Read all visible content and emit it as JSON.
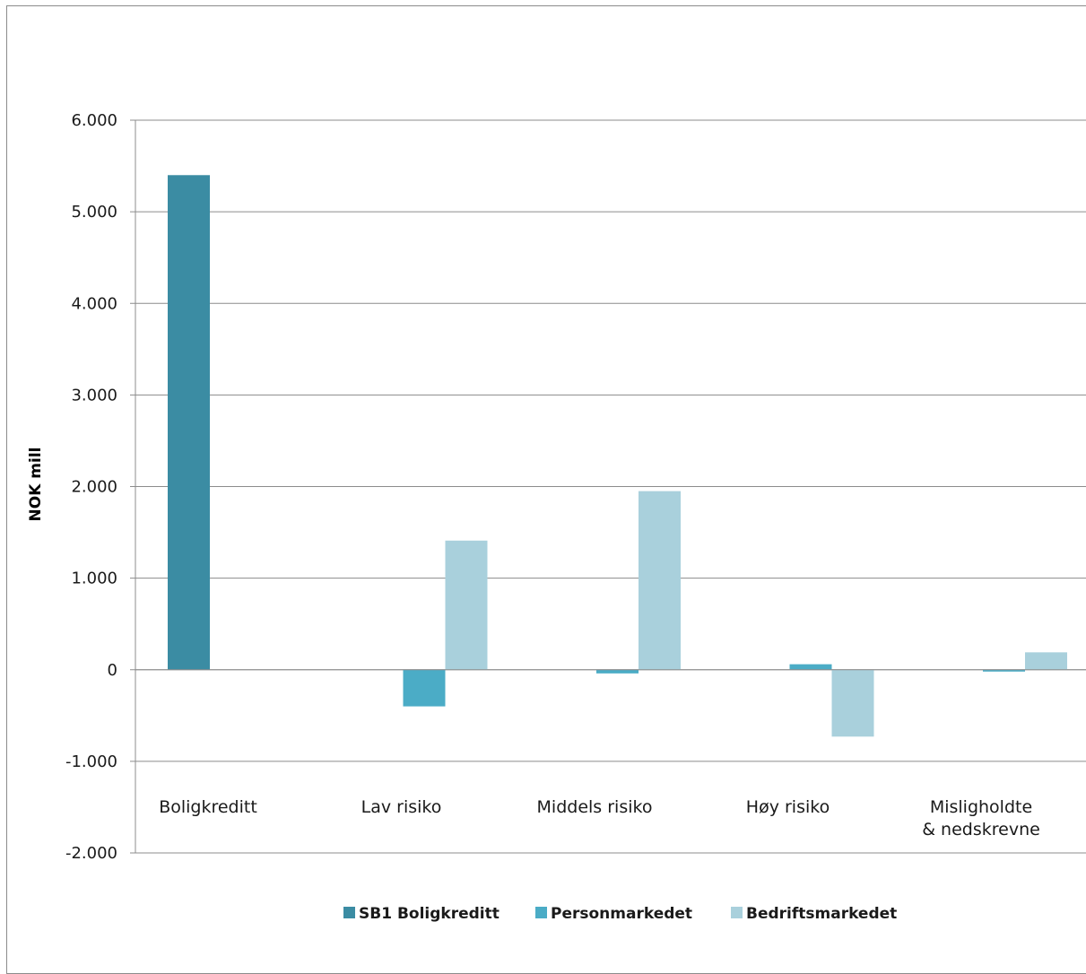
{
  "chart_data": {
    "type": "bar",
    "title": "",
    "xlabel": "",
    "ylabel": "NOK mill",
    "ylim": [
      -2000,
      6000
    ],
    "yticks": [
      {
        "value": 6000,
        "label": "6.000"
      },
      {
        "value": 5000,
        "label": "5.000"
      },
      {
        "value": 4000,
        "label": "4.000"
      },
      {
        "value": 3000,
        "label": "3.000"
      },
      {
        "value": 2000,
        "label": "2.000"
      },
      {
        "value": 1000,
        "label": "1.000"
      },
      {
        "value": 0,
        "label": "0"
      },
      {
        "value": -1000,
        "label": "-1.000"
      },
      {
        "value": -2000,
        "label": "-2.000"
      }
    ],
    "grid": true,
    "legend_position": "bottom",
    "categories": [
      [
        "Boligkreditt"
      ],
      [
        "Lav risiko"
      ],
      [
        "Middels risiko"
      ],
      [
        "Høy risiko"
      ],
      [
        "Misligholdte",
        "& nedskrevne"
      ]
    ],
    "series": [
      {
        "name": "SB1 Boligkreditt",
        "color": "#3b8ca3",
        "values": [
          5400,
          null,
          null,
          null,
          null
        ]
      },
      {
        "name": "Personmarkedet",
        "color": "#4bacc6",
        "values": [
          null,
          -400,
          -40,
          60,
          -20
        ]
      },
      {
        "name": "Bedriftsmarkedet",
        "color": "#a9d0dc",
        "values": [
          null,
          1410,
          1950,
          -730,
          190
        ]
      }
    ]
  }
}
